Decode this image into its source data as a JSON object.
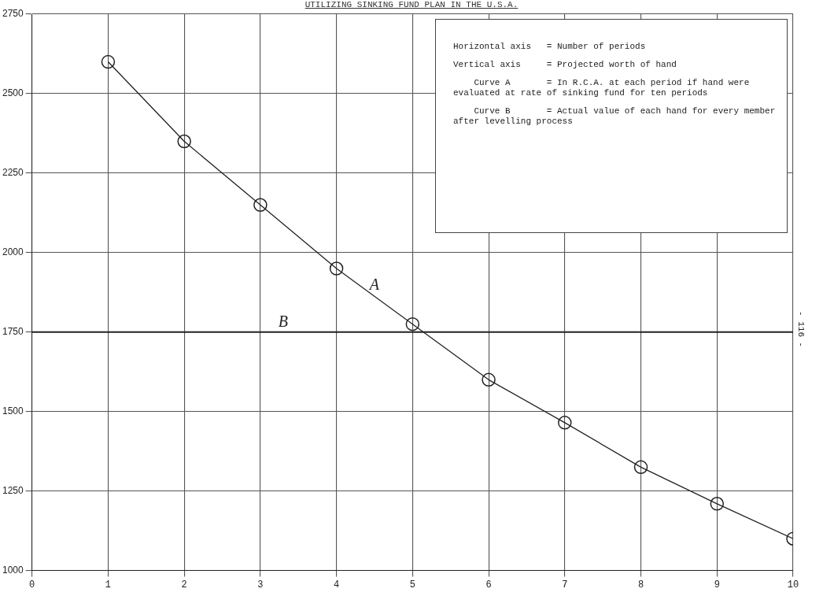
{
  "chart_data": {
    "type": "line",
    "title": "UTILIZING SINKING FUND PLAN IN THE U.S.A.",
    "x": [
      1,
      2,
      3,
      4,
      5,
      6,
      7,
      8,
      9,
      10
    ],
    "series": [
      {
        "name": "A",
        "color": "#222222",
        "values": [
          2600,
          2350,
          2150,
          1950,
          1775,
          1600,
          1465,
          1325,
          1210,
          1100
        ]
      }
    ],
    "xlim": [
      0,
      10
    ],
    "xticks": [
      0,
      1,
      2,
      3,
      4,
      5,
      6,
      7,
      8,
      9,
      10
    ],
    "ylim": [
      1000,
      2750
    ],
    "yticks": [
      1000,
      1250,
      1500,
      1750,
      2000,
      2250,
      2500,
      2750
    ],
    "ref_lines": [
      {
        "axis": "y",
        "value": 1750,
        "label": "B",
        "color": "#222222"
      }
    ],
    "annotations": [
      "Horizontal axis   = Number of periods",
      "Vertical axis     = Projected worth of hand",
      "    Curve A       = In R.C.A. at each period if hand were evaluated at rate of sinking fund for ten periods",
      "    Curve B       = Actual value of each hand for every member after levelling process",
      "- 116 -"
    ],
    "grid": true,
    "legend": false,
    "marker": "circle",
    "line_style": "solid"
  }
}
